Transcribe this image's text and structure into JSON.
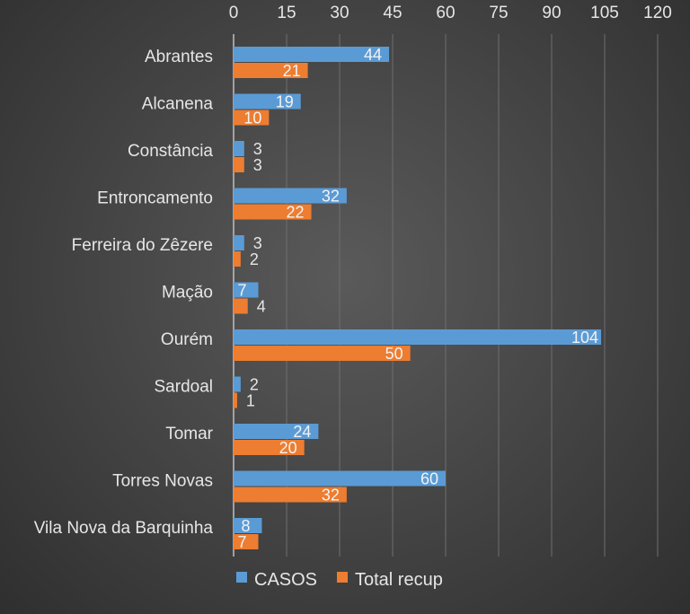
{
  "chart_data": {
    "type": "bar",
    "orientation": "horizontal",
    "categories": [
      "Abrantes",
      "Alcanena",
      "Constância",
      "Entroncamento",
      "Ferreira do Zêzere",
      "Mação",
      "Ourém",
      "Sardoal",
      "Tomar",
      "Torres Novas",
      "Vila Nova da Barquinha"
    ],
    "series": [
      {
        "name": "CASOS",
        "values": [
          44,
          19,
          3,
          32,
          3,
          7,
          104,
          2,
          24,
          60,
          8
        ],
        "color": "#5b9bd5"
      },
      {
        "name": "Total recup",
        "values": [
          21,
          10,
          3,
          22,
          2,
          4,
          50,
          1,
          20,
          32,
          7
        ],
        "color": "#ed7d31"
      }
    ],
    "xlim": [
      0,
      120
    ],
    "xticks": [
      0,
      15,
      30,
      45,
      60,
      75,
      90,
      105,
      120
    ],
    "x_axis_position": "top",
    "grid": true,
    "legend": "bottom",
    "data_labels": true
  }
}
